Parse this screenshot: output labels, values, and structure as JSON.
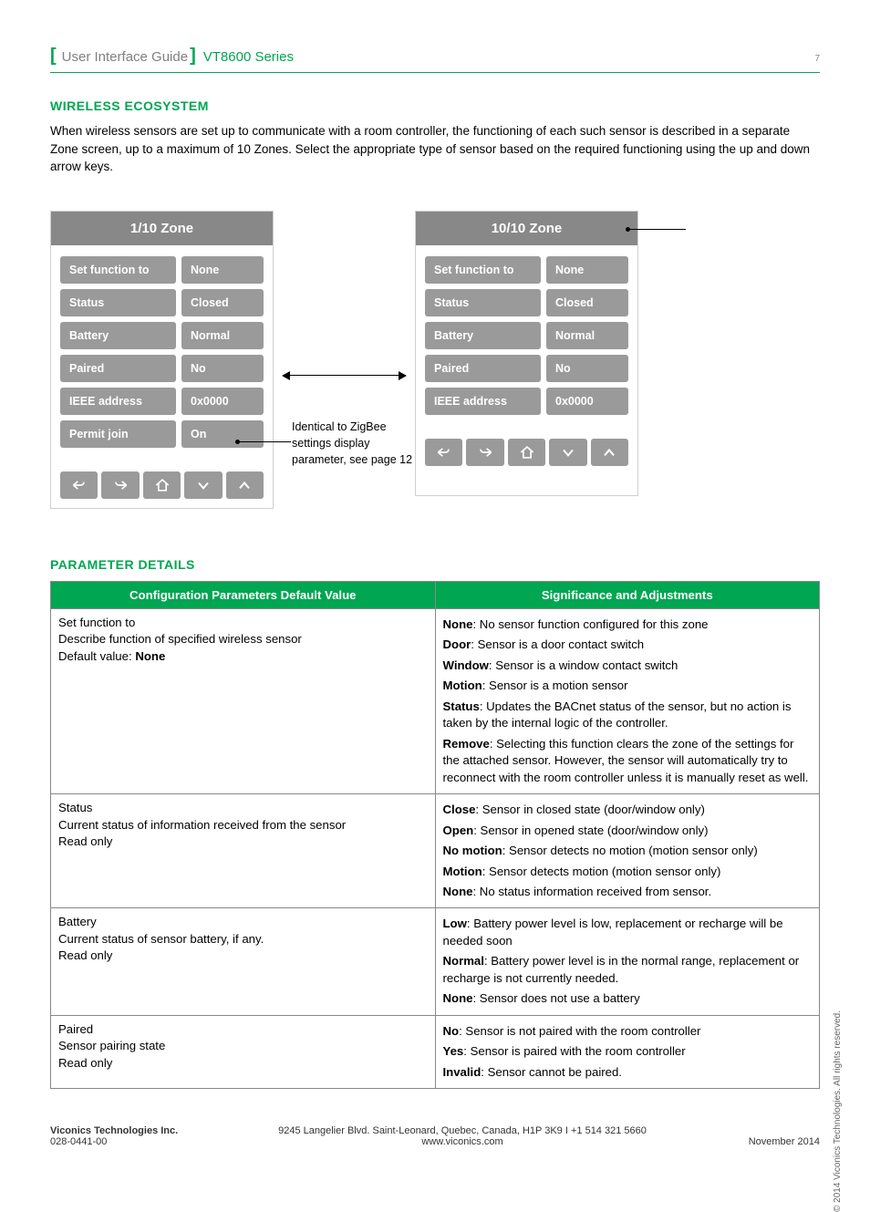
{
  "header": {
    "title": "User Interface Guide",
    "series": "VT8600 Series",
    "page_number": "7"
  },
  "section1": {
    "title": "WIRELESS ECOSYSTEM",
    "paragraph": "When wireless sensors are set up to communicate with a room controller, the functioning of each such sensor is described in a separate Zone screen, up to a maximum of 10 Zones. Select the appropriate type of sensor based on the required functioning using the up and down arrow keys."
  },
  "zone_left": {
    "title": "1/10 Zone",
    "rows": [
      {
        "label": "Set function to",
        "value": "None"
      },
      {
        "label": "Status",
        "value": "Closed"
      },
      {
        "label": "Battery",
        "value": "Normal"
      },
      {
        "label": "Paired",
        "value": "No"
      },
      {
        "label": "IEEE address",
        "value": "0x0000"
      },
      {
        "label": "Permit join",
        "value": "On"
      }
    ]
  },
  "zone_right": {
    "title": "10/10 Zone",
    "rows": [
      {
        "label": "Set function to",
        "value": "None"
      },
      {
        "label": "Status",
        "value": "Closed"
      },
      {
        "label": "Battery",
        "value": "Normal"
      },
      {
        "label": "Paired",
        "value": "No"
      },
      {
        "label": "IEEE address",
        "value": "0x0000"
      }
    ]
  },
  "middle_note": "Identical to ZigBee settings display parameter, see page 12",
  "section2": {
    "title": "PARAMETER DETAILS"
  },
  "table": {
    "head_left": "Configuration Parameters Default Value",
    "head_right": "Significance and Adjustments",
    "r1_title": "Set function to",
    "r1_desc": "Describe function of specified wireless sensor",
    "r1_def_label": "Default value:",
    "r1_def_value": "None",
    "r1_s1b": "None",
    "r1_s1t": ": No sensor function configured for this zone",
    "r1_s2b": "Door",
    "r1_s2t": ": Sensor is a door contact switch",
    "r1_s3b": "Window",
    "r1_s3t": ": Sensor is a window contact switch",
    "r1_s4b": "Motion",
    "r1_s4t": ": Sensor is a motion sensor",
    "r1_s5b": "Status",
    "r1_s5t": ": Updates the BACnet status of the sensor, but no action is taken by the internal logic of the controller.",
    "r1_s6b": "Remove",
    "r1_s6t": ": Selecting this function clears the zone of the settings for the attached sensor. However, the sensor will automatically try to reconnect with the room controller unless it is manually reset as well.",
    "r2_title": "Status",
    "r2_desc": "Current status of information received from the sensor",
    "r2_ro": "Read only",
    "r2_s1b": "Close",
    "r2_s1t": ": Sensor in closed state (door/window only)",
    "r2_s2b": "Open",
    "r2_s2t": ": Sensor in opened state (door/window only)",
    "r2_s3b": "No motion",
    "r2_s3t": ": Sensor detects no motion (motion sensor only)",
    "r2_s4b": "Motion",
    "r2_s4t": ": Sensor detects motion (motion sensor only)",
    "r2_s5b": "None",
    "r2_s5t": ": No status information received from sensor.",
    "r3_title": "Battery",
    "r3_desc": "Current status of sensor battery, if any.",
    "r3_ro": "Read only",
    "r3_s1b": "Low",
    "r3_s1t": ": Battery power level is low, replacement or recharge will be needed soon",
    "r3_s2b": "Normal",
    "r3_s2t": ": Battery power level is in the normal range, replacement or recharge is not currently needed.",
    "r3_s3b": "None",
    "r3_s3t": ": Sensor does not use a battery",
    "r4_title": "Paired",
    "r4_desc": "Sensor pairing state",
    "r4_ro": "Read only",
    "r4_s1b": "No",
    "r4_s1t": ": Sensor is not paired with the room controller",
    "r4_s2b": "Yes",
    "r4_s2t": ": Sensor is paired with the room controller",
    "r4_s3b": "Invalid",
    "r4_s3t": ": Sensor cannot be paired."
  },
  "copyright": "© 2014 Viconics Technologies. All rights reserved.",
  "footer": {
    "company": "Viconics Technologies Inc.",
    "docnum": "028-0441-00",
    "address": "9245 Langelier Blvd. Saint-Leonard, Quebec, Canada, H1P 3K9  I  +1 514 321 5660",
    "web": "www.viconics.com",
    "date": "November 2014"
  },
  "colors": {
    "accent": "#00a651",
    "pill_bg": "#9a9a9a",
    "header_bg": "#888888"
  }
}
